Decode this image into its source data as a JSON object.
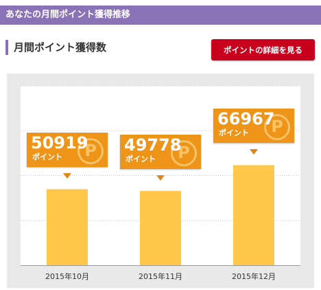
{
  "header": {
    "title": "あなたの月間ポイント獲得推移"
  },
  "section": {
    "title": "月間ポイント獲得数"
  },
  "detail_button": {
    "label": "ポイントの詳細を見る"
  },
  "colors": {
    "header": "#8a72b6",
    "button": "#c8001e",
    "bar": "#ffc84a",
    "callout": "#ee9418"
  },
  "callout": {
    "unit": "ポイント",
    "icon": "point-coin-icon",
    "icon_glyph": "P"
  },
  "chart_data": {
    "type": "bar",
    "categories": [
      "2015年10月",
      "2015年11月",
      "2015年12月"
    ],
    "values": [
      50919,
      49778,
      66967
    ],
    "data_labels": [
      "50919",
      "49778",
      "66967"
    ],
    "title": "",
    "xlabel": "",
    "ylabel": "",
    "ylim": [
      0,
      120000
    ],
    "grid": true
  }
}
